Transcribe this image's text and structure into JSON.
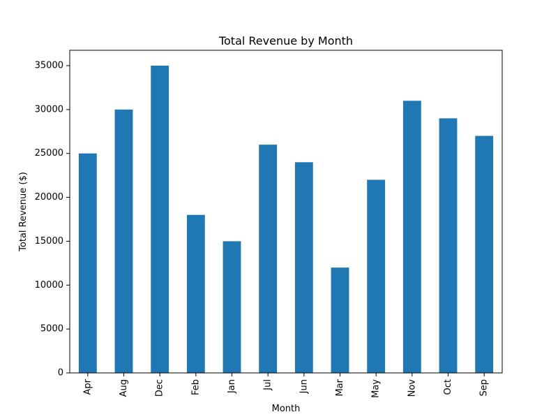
{
  "chart_data": {
    "type": "bar",
    "title": "Total Revenue by Month",
    "xlabel": "Month",
    "ylabel": "Total Revenue ($)",
    "categories": [
      "Apr",
      "Aug",
      "Dec",
      "Feb",
      "Jan",
      "Jul",
      "Jun",
      "Mar",
      "May",
      "Nov",
      "Oct",
      "Sep"
    ],
    "values": [
      25000,
      30000,
      35000,
      18000,
      15000,
      26000,
      24000,
      12000,
      22000,
      31000,
      29000,
      27000
    ],
    "ylim": [
      0,
      36750
    ],
    "yticks": [
      0,
      5000,
      10000,
      15000,
      20000,
      25000,
      30000,
      35000
    ],
    "grid": false,
    "legend": "none",
    "bar_color": "#1f77b4"
  }
}
